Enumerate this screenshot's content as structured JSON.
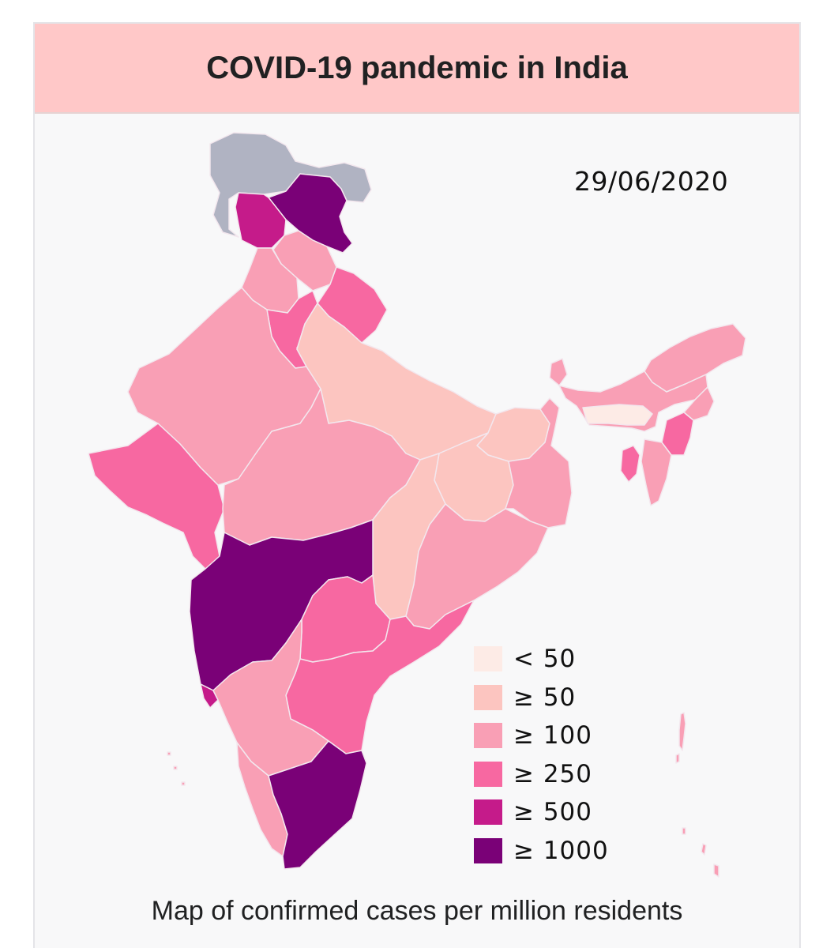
{
  "title": "COVID-19 pandemic in India",
  "map_date": "29/06/2020",
  "caption": "Map of confirmed cases per million residents",
  "legend": [
    {
      "label": "< 50",
      "color": "#fdebe6"
    },
    {
      "label": "≥ 50",
      "color": "#fcc5c0"
    },
    {
      "label": "≥ 100",
      "color": "#f99fb5"
    },
    {
      "label": "≥ 250",
      "color": "#f768a1"
    },
    {
      "label": "≥ 500",
      "color": "#c51b8a"
    },
    {
      "label": "≥ 1000",
      "color": "#7a0177"
    }
  ],
  "no_data_color": "#b0b3c2",
  "regions": [
    {
      "name": "Ladakh",
      "category": "≥ 1000"
    },
    {
      "name": "Jammu and Kashmir",
      "category": "≥ 500"
    },
    {
      "name": "Himachal Pradesh",
      "category": "≥ 100"
    },
    {
      "name": "Punjab",
      "category": "≥ 100"
    },
    {
      "name": "Uttarakhand",
      "category": "≥ 250"
    },
    {
      "name": "Haryana",
      "category": "≥ 250"
    },
    {
      "name": "Delhi",
      "category": "≥ 1000"
    },
    {
      "name": "Rajasthan",
      "category": "≥ 100"
    },
    {
      "name": "Uttar Pradesh",
      "category": "≥ 50"
    },
    {
      "name": "Gujarat",
      "category": "≥ 250"
    },
    {
      "name": "Madhya Pradesh",
      "category": "≥ 100"
    },
    {
      "name": "Bihar",
      "category": "≥ 50"
    },
    {
      "name": "Jharkhand",
      "category": "≥ 50"
    },
    {
      "name": "West Bengal",
      "category": "≥ 100"
    },
    {
      "name": "Chhattisgarh",
      "category": "≥ 50"
    },
    {
      "name": "Odisha",
      "category": "≥ 100"
    },
    {
      "name": "Maharashtra",
      "category": "≥ 1000"
    },
    {
      "name": "Telangana",
      "category": "≥ 250"
    },
    {
      "name": "Andhra Pradesh",
      "category": "≥ 250"
    },
    {
      "name": "Goa",
      "category": "≥ 500"
    },
    {
      "name": "Karnataka",
      "category": "≥ 100"
    },
    {
      "name": "Kerala",
      "category": "≥ 100"
    },
    {
      "name": "Tamil Nadu",
      "category": "≥ 1000"
    },
    {
      "name": "Sikkim",
      "category": "≥ 100"
    },
    {
      "name": "Arunachal Pradesh",
      "category": "≥ 100"
    },
    {
      "name": "Assam",
      "category": "≥ 100"
    },
    {
      "name": "Meghalaya",
      "category": "< 50"
    },
    {
      "name": "Nagaland",
      "category": "≥ 100"
    },
    {
      "name": "Manipur",
      "category": "≥ 250"
    },
    {
      "name": "Mizoram",
      "category": "≥ 100"
    },
    {
      "name": "Tripura",
      "category": "≥ 250"
    },
    {
      "name": "Andaman and Nicobar Islands",
      "category": "≥ 100"
    },
    {
      "name": "Lakshadweep",
      "category": "≥ 100"
    }
  ]
}
